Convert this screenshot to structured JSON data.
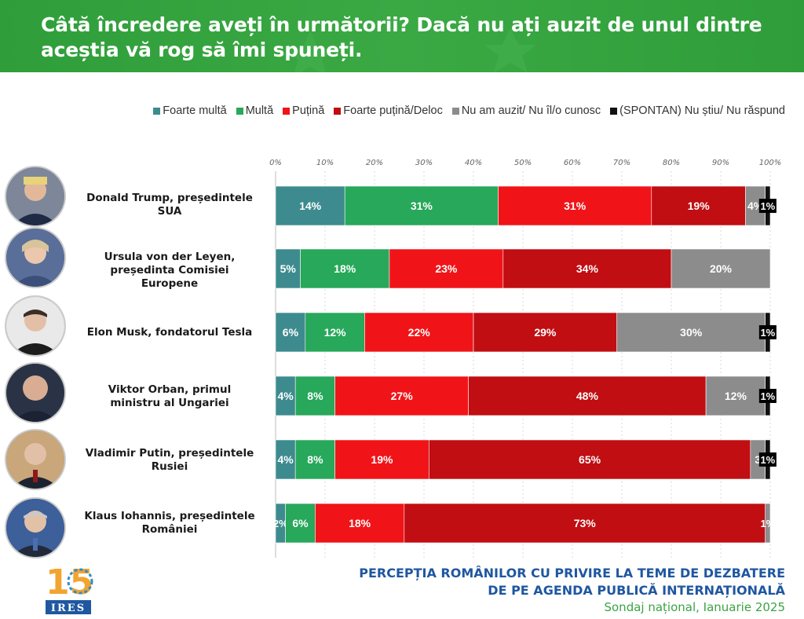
{
  "header": {
    "title": "Câtă încredere aveți în următorii? Dacă nu ați auzit de unul dintre aceștia vă rog să îmi spuneți."
  },
  "chart_data": {
    "type": "bar",
    "orientation": "horizontal",
    "stacked": true,
    "xlim": [
      0,
      100
    ],
    "x_ticks": [
      "0%",
      "10%",
      "20%",
      "30%",
      "40%",
      "50%",
      "60%",
      "70%",
      "80%",
      "90%",
      "100%"
    ],
    "legend_position": "top-right",
    "categories": [
      "Donald Trump, președintele SUA",
      "Ursula von der Leyen, președinta Comisiei Europene",
      "Elon Musk, fondatorul Tesla",
      "Viktor Orban, primul ministru al Ungariei",
      "Vladimir Putin, președintele Rusiei",
      "Klaus Iohannis, președintele României"
    ],
    "series": [
      {
        "name": "Foarte multă",
        "color": "#3d8b8f",
        "values": [
          14,
          5,
          6,
          4,
          4,
          2
        ],
        "labels": [
          "14%",
          "5%",
          "6%",
          "4%",
          "4%",
          "2%"
        ]
      },
      {
        "name": "Multă",
        "color": "#27a85a",
        "values": [
          31,
          18,
          12,
          8,
          8,
          6
        ],
        "labels": [
          "31%",
          "18%",
          "12%",
          "8%",
          "8%",
          "6%"
        ]
      },
      {
        "name": "Puțină",
        "color": "#f01418",
        "values": [
          31,
          23,
          22,
          27,
          19,
          18
        ],
        "labels": [
          "31%",
          "23%",
          "22%",
          "27%",
          "19%",
          "18%"
        ]
      },
      {
        "name": "Foarte puțină/Deloc",
        "color": "#c00e12",
        "values": [
          19,
          34,
          29,
          48,
          65,
          73
        ],
        "labels": [
          "19%",
          "34%",
          "29%",
          "48%",
          "65%",
          "73%"
        ]
      },
      {
        "name": "Nu am auzit/ Nu îl/o cunosc",
        "color": "#8c8c8c",
        "values": [
          4,
          20,
          30,
          12,
          3,
          1
        ],
        "labels": [
          "4%",
          "20%",
          "30%",
          "12%",
          "3",
          "1%"
        ]
      },
      {
        "name": "(SPONTAN) Nu știu/ Nu răspund",
        "color": "#111111",
        "values": [
          1,
          0,
          1,
          1,
          1,
          0
        ],
        "labels": [
          "1%",
          "",
          "1%",
          "1%",
          "1%",
          ""
        ]
      }
    ]
  },
  "people": [
    {
      "line1": "Donald Trump, președintele",
      "line2": "SUA",
      "line3": "",
      "photo": "person-photo"
    },
    {
      "line1": "Ursula von der Leyen,",
      "line2": "președinta Comisiei",
      "line3": "Europene",
      "photo": "person-photo"
    },
    {
      "line1": "Elon Musk, fondatorul Tesla",
      "line2": "",
      "line3": "",
      "photo": "person-photo"
    },
    {
      "line1": "Viktor Orban, primul",
      "line2": "ministru al Ungariei",
      "line3": "",
      "photo": "person-photo"
    },
    {
      "line1": "Vladimir Putin, președintele",
      "line2": "Rusiei",
      "line3": "",
      "photo": "person-photo"
    },
    {
      "line1": "Klaus Iohannis, președintele",
      "line2": "României",
      "line3": "",
      "photo": "person-photo"
    }
  ],
  "logo": {
    "number": "15",
    "text": "IRES"
  },
  "footer": {
    "line1": "PERCEPȚIA ROMÂNILOR CU PRIVIRE LA TEME DE DEZBATERE",
    "line2": "DE PE AGENDA PUBLICĂ INTERNAȚIONALĂ",
    "line3": "Sondaj național, Ianuarie 2025"
  }
}
